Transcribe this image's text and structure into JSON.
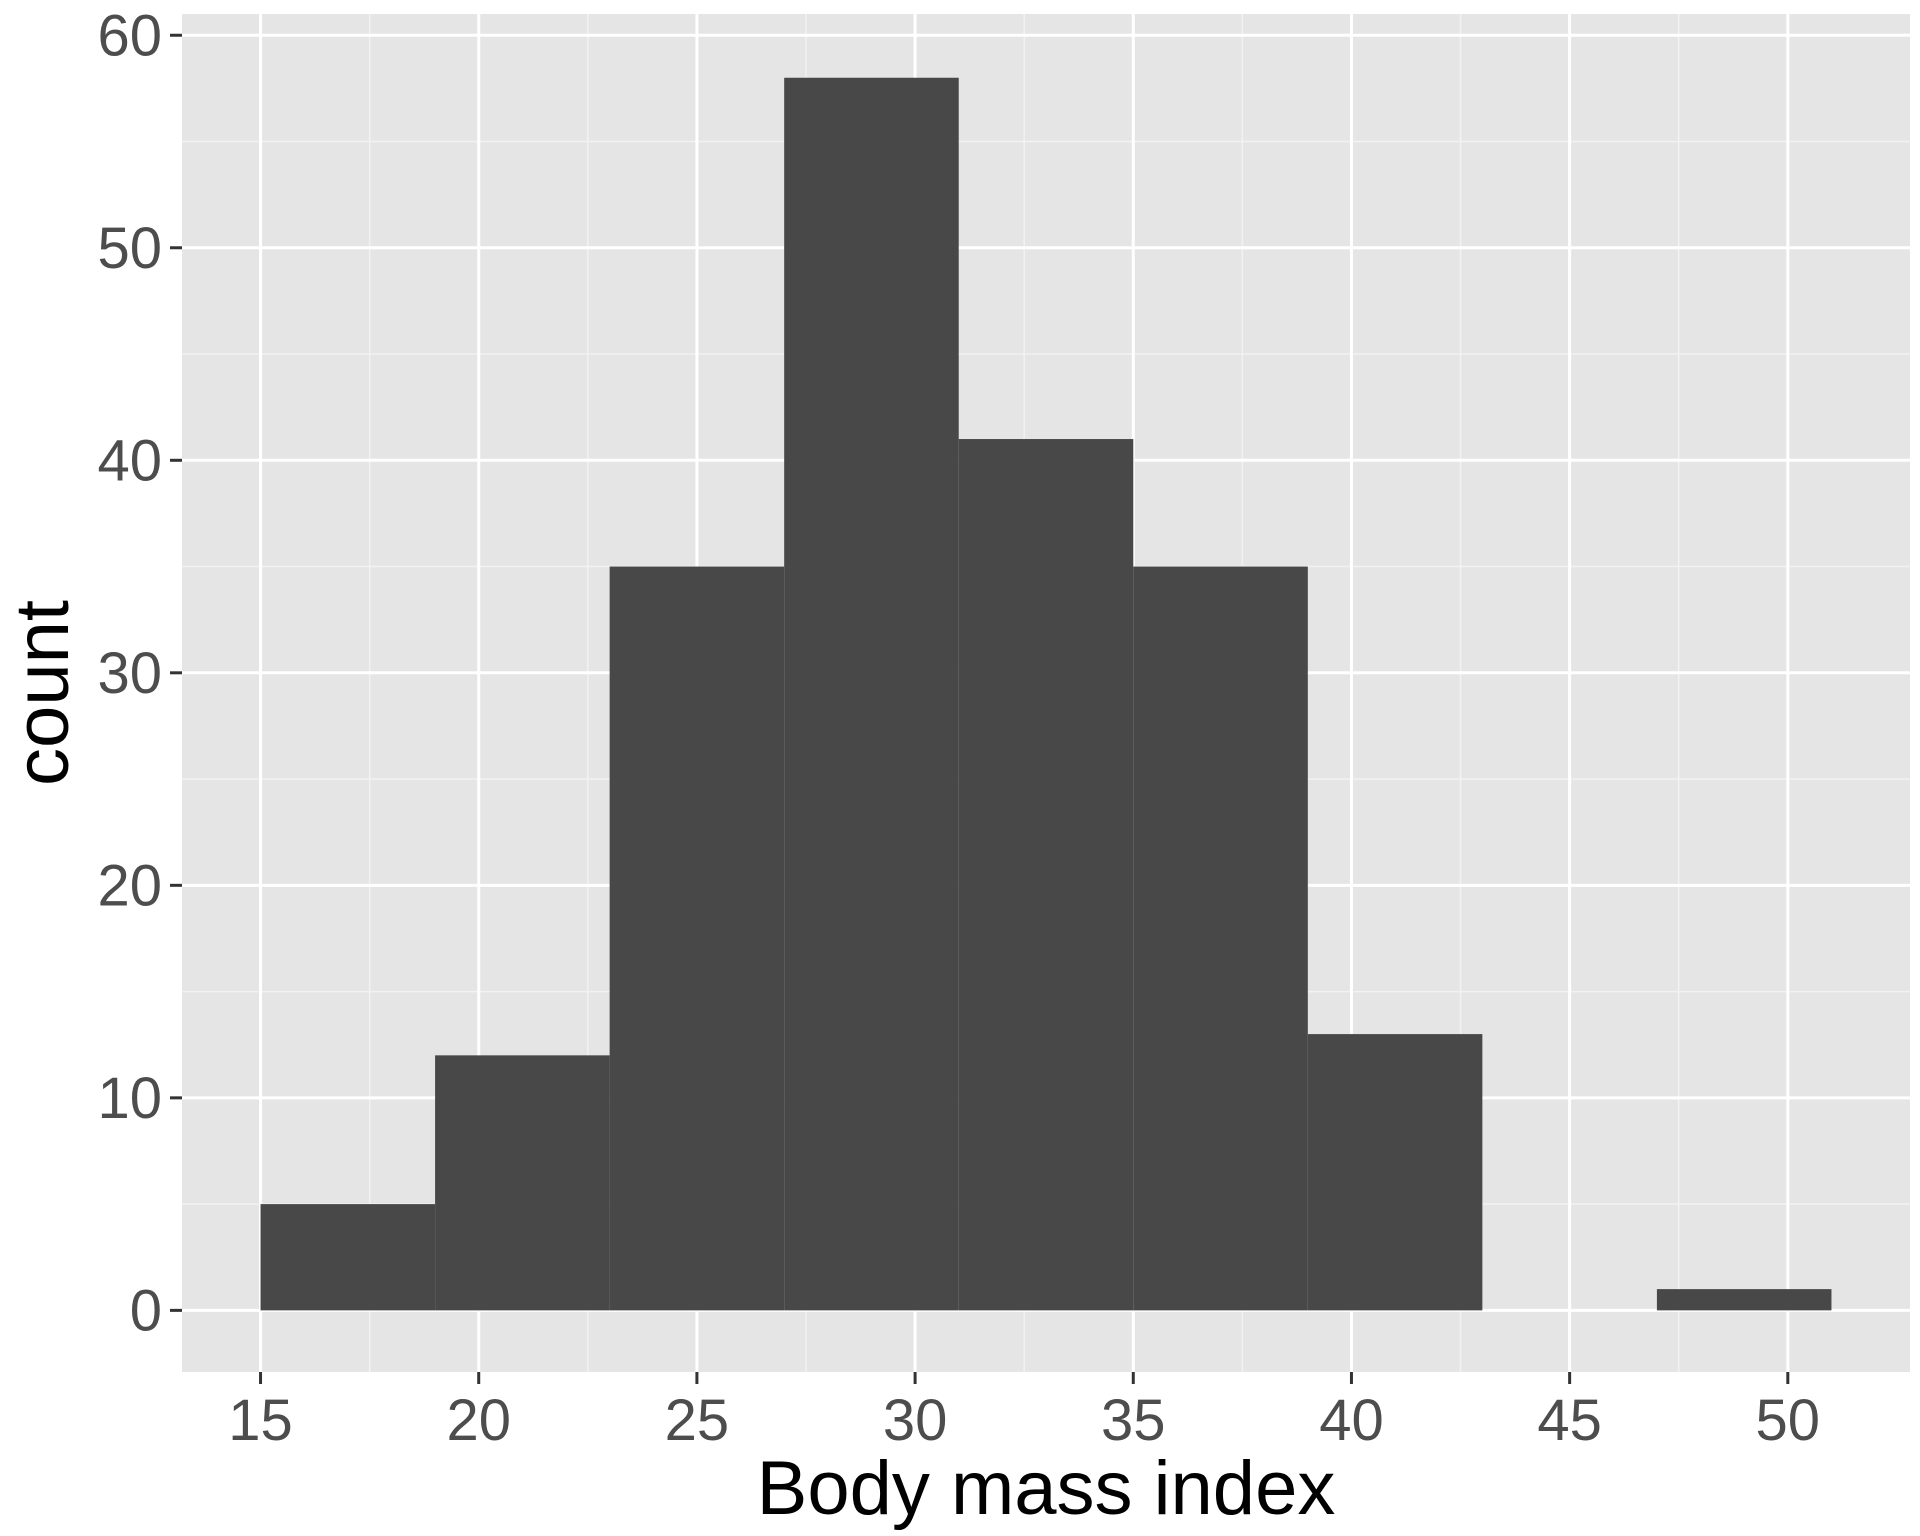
{
  "chart_data": {
    "type": "histogram",
    "title": "",
    "xlabel": "Body mass index",
    "ylabel": "count",
    "xlim": [
      13.2,
      52.8
    ],
    "ylim": [
      -2.9,
      61
    ],
    "x_ticks": [
      15,
      20,
      25,
      30,
      35,
      40,
      45,
      50
    ],
    "y_ticks": [
      0,
      10,
      20,
      30,
      40,
      50,
      60
    ],
    "bins": [
      {
        "start": 15,
        "end": 19,
        "count": 5
      },
      {
        "start": 19,
        "end": 23,
        "count": 12
      },
      {
        "start": 23,
        "end": 27,
        "count": 35
      },
      {
        "start": 27,
        "end": 31,
        "count": 58
      },
      {
        "start": 31,
        "end": 35,
        "count": 41
      },
      {
        "start": 35,
        "end": 39,
        "count": 35
      },
      {
        "start": 39,
        "end": 43,
        "count": 13
      },
      {
        "start": 43,
        "end": 47,
        "count": 0
      },
      {
        "start": 47,
        "end": 51,
        "count": 1
      }
    ],
    "grid": true,
    "legend": "none",
    "colors": {
      "panel_background": "#e5e5e5",
      "grid_major": "#ffffff",
      "grid_minor": "#f2f2f2",
      "bar_fill": "#484848",
      "tick_mark": "#333333",
      "tick_label": "#4d4d4d",
      "axis_title": "#000000"
    }
  }
}
